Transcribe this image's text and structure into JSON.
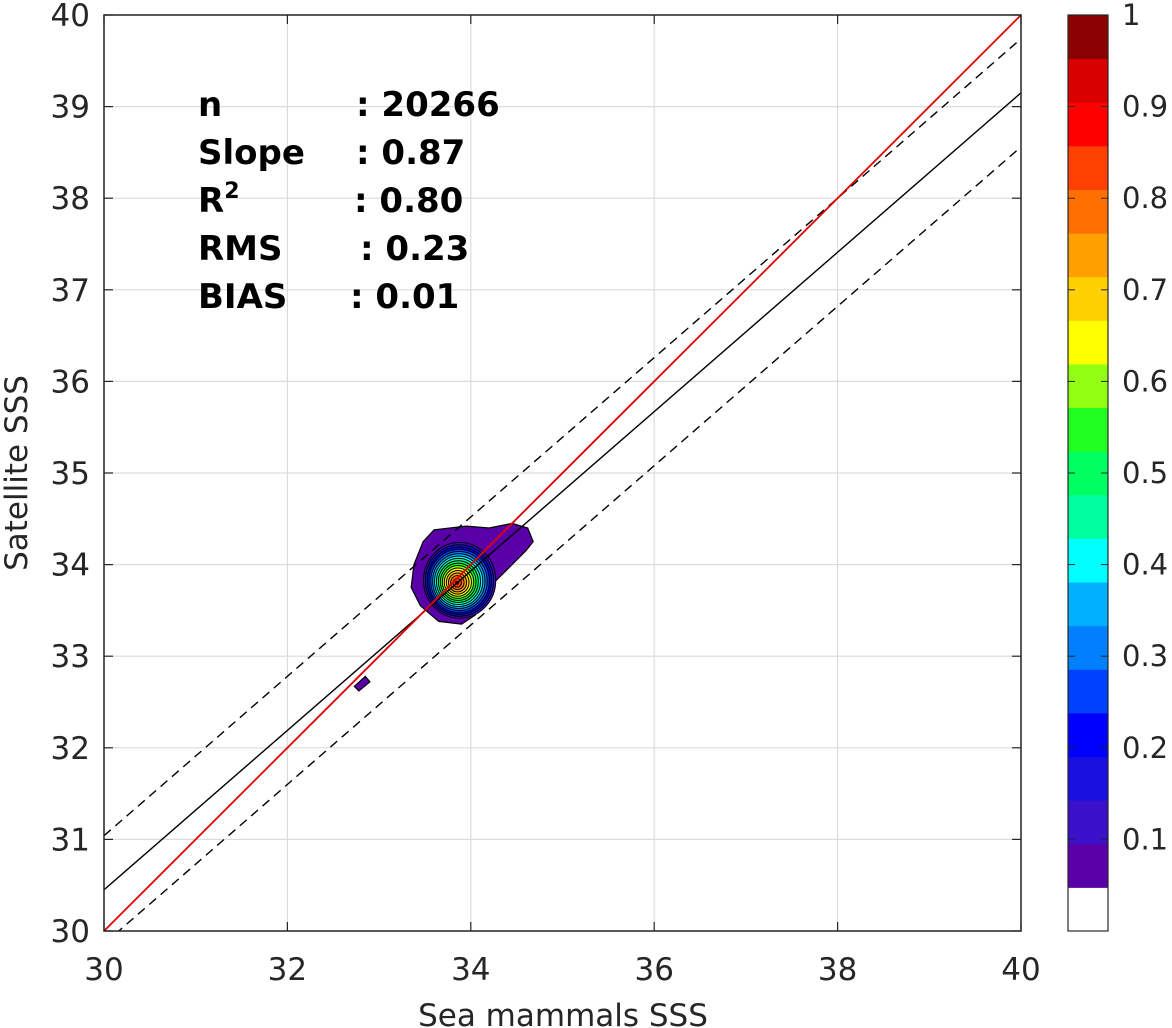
{
  "chart_data": {
    "type": "contour",
    "xlabel": "Sea mammals SSS",
    "ylabel": "Satellite SSS",
    "xlim": [
      30,
      40
    ],
    "ylim": [
      30,
      40
    ],
    "xticks": [
      "30",
      "32",
      "34",
      "36",
      "38",
      "40"
    ],
    "yticks": [
      "30",
      "31",
      "32",
      "33",
      "34",
      "35",
      "36",
      "37",
      "38",
      "39",
      "40"
    ],
    "grid": true,
    "stats": [
      {
        "label": "n",
        "value": ": 20266"
      },
      {
        "label": "Slope",
        "value": ": 0.87"
      },
      {
        "label": "R",
        "sup": "2",
        "value": ": 0.80"
      },
      {
        "label": "RMS",
        "value": ": 0.23"
      },
      {
        "label": "BIAS",
        "value": ": 0.01"
      }
    ],
    "lines": {
      "identity": {
        "color": "#e00000",
        "x": [
          30,
          40
        ],
        "y": [
          30,
          40
        ]
      },
      "regression": {
        "color": "#000000",
        "x": [
          30,
          40
        ],
        "y": [
          30.45,
          39.15
        ]
      },
      "upper_bound": {
        "color": "#000000",
        "style": "dashed",
        "x": [
          30,
          40
        ],
        "y": [
          31.04,
          39.74
        ]
      },
      "lower_bound": {
        "color": "#000000",
        "style": "dashed",
        "x": [
          30,
          40
        ],
        "y": [
          29.86,
          38.56
        ]
      }
    },
    "density_peak": {
      "x": 33.85,
      "y": 33.8
    },
    "colorbar": {
      "range": [
        0,
        1
      ],
      "ticks": [
        "0.1",
        "0.2",
        "0.3",
        "0.4",
        "0.5",
        "0.6",
        "0.7",
        "0.8",
        "0.9",
        "1"
      ],
      "levels": [
        "#ffffff",
        "#5a00a8",
        "#3a10c8",
        "#1a10e0",
        "#0000ff",
        "#0040ff",
        "#0080ff",
        "#00b0ff",
        "#00ffff",
        "#00ffa0",
        "#00ff60",
        "#20ff20",
        "#90ff10",
        "#ffff00",
        "#ffd000",
        "#ffa000",
        "#ff7000",
        "#ff4000",
        "#ff0000",
        "#d80000",
        "#8b0000"
      ]
    }
  }
}
